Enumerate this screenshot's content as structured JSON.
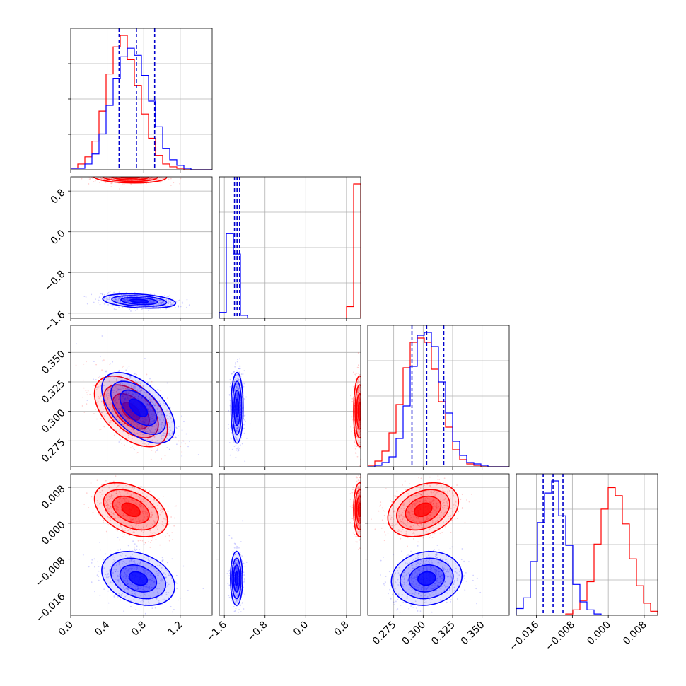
{
  "chart_data": {
    "type": "corner",
    "parameters": 4,
    "grid": true,
    "series": [
      {
        "color": "#ff0000"
      },
      {
        "color": "#0000ff"
      }
    ],
    "quantile_color": "#0000cc",
    "params": [
      {
        "index": 0,
        "lim": [
          0.0,
          1.55
        ],
        "ticks": [
          0.0,
          0.4,
          0.8,
          1.2
        ],
        "tick_labels": [
          "0.0",
          "0.4",
          "0.8",
          "1.2"
        ],
        "quantiles": [
          0.53,
          0.72,
          0.92
        ]
      },
      {
        "index": 1,
        "lim": [
          -1.7,
          1.08
        ],
        "ticks": [
          -1.6,
          -0.8,
          0.0,
          0.8
        ],
        "tick_labels": [
          "−1.6",
          "−0.8",
          "0.0",
          "0.8"
        ],
        "quantiles": [
          -1.4,
          -1.35,
          -1.3
        ]
      },
      {
        "index": 2,
        "lim": [
          0.253,
          0.373
        ],
        "ticks": [
          0.275,
          0.3,
          0.325,
          0.35
        ],
        "tick_labels": [
          "0.275",
          "0.300",
          "0.325",
          "0.350"
        ],
        "quantiles": [
          0.2905,
          0.303,
          0.3175
        ]
      },
      {
        "index": 3,
        "lim": [
          -0.0205,
          0.011
        ],
        "ticks": [
          -0.016,
          -0.008,
          0.0,
          0.008
        ],
        "tick_labels": [
          "−0.016",
          "−0.008",
          "0.000",
          "0.008"
        ],
        "quantiles": [
          -0.0145,
          -0.0123,
          -0.0101
        ]
      }
    ],
    "histograms": [
      {
        "param": 0,
        "bins": [
          0.0,
          0.0775,
          0.155,
          0.2325,
          0.31,
          0.3875,
          0.465,
          0.5425,
          0.62,
          0.6975,
          0.775,
          0.8525,
          0.93,
          1.0075,
          1.085,
          1.1625,
          1.24,
          1.3175,
          1.395,
          1.4725,
          1.55
        ],
        "counts": [
          {
            "series": 0,
            "values": [
              0.01,
              0.04,
              0.09,
              0.2,
              0.41,
              0.67,
              0.86,
              0.94,
              0.77,
              0.59,
              0.39,
              0.22,
              0.1,
              0.04,
              0.02,
              0.01,
              0.0,
              0.0,
              0.0,
              0.0
            ]
          },
          {
            "series": 1,
            "values": [
              0.01,
              0.01,
              0.04,
              0.11,
              0.25,
              0.45,
              0.64,
              0.79,
              0.85,
              0.8,
              0.66,
              0.48,
              0.3,
              0.15,
              0.07,
              0.03,
              0.01,
              0.0,
              0.0,
              0.0
            ]
          }
        ]
      },
      {
        "param": 1,
        "bins": [
          -1.7,
          -1.561,
          -1.422,
          -1.283,
          -1.144,
          -1.005,
          -0.866,
          -0.727,
          -0.588,
          -0.449,
          -0.31,
          -0.171,
          -0.032,
          0.107,
          0.246,
          0.385,
          0.524,
          0.663,
          0.802,
          0.941,
          1.08
        ],
        "counts": [
          {
            "series": 0,
            "values": [
              0,
              0,
              0,
              0,
              0,
              0,
              0,
              0,
              0,
              0,
              0,
              0,
              0,
              0,
              0,
              0,
              0,
              0,
              0.08,
              0.92
            ]
          },
          {
            "series": 1,
            "values": [
              0.04,
              0.58,
              0.44,
              0.02,
              0.0,
              0,
              0,
              0,
              0,
              0,
              0,
              0,
              0,
              0,
              0,
              0,
              0,
              0,
              0,
              0
            ]
          }
        ]
      },
      {
        "param": 2,
        "bins": [
          0.253,
          0.259,
          0.265,
          0.271,
          0.277,
          0.283,
          0.289,
          0.295,
          0.301,
          0.307,
          0.313,
          0.319,
          0.325,
          0.331,
          0.337,
          0.343,
          0.349,
          0.355,
          0.361,
          0.367,
          0.373
        ],
        "counts": [
          {
            "series": 0,
            "values": [
              0.01,
              0.04,
              0.11,
              0.24,
              0.44,
              0.7,
              0.88,
              0.91,
              0.88,
              0.69,
              0.46,
              0.28,
              0.12,
              0.05,
              0.02,
              0.01,
              0.0,
              0.0,
              0.0,
              0.0
            ]
          },
          {
            "series": 1,
            "values": [
              0.0,
              0.01,
              0.03,
              0.07,
              0.2,
              0.43,
              0.71,
              0.93,
              0.95,
              0.85,
              0.6,
              0.38,
              0.18,
              0.08,
              0.03,
              0.02,
              0.01,
              0.0,
              0.0,
              0.0
            ]
          }
        ]
      },
      {
        "param": 3,
        "bins": [
          -0.0205,
          -0.018925,
          -0.01735,
          -0.015775,
          -0.0142,
          -0.012625,
          -0.01105,
          -0.009475,
          -0.0079,
          -0.006325,
          -0.00475,
          -0.003175,
          -0.0016,
          -2.5e-05,
          0.00155,
          0.003125,
          0.0047,
          0.006275,
          0.00785,
          0.009425,
          0.011
        ],
        "counts": [
          {
            "series": 0,
            "values": [
              0,
              0,
              0,
              0,
              0,
              0,
              0,
              0.01,
              0.04,
              0.11,
              0.25,
              0.53,
              0.79,
              0.95,
              0.89,
              0.68,
              0.42,
              0.22,
              0.09,
              0.03
            ]
          },
          {
            "series": 1,
            "values": [
              0.05,
              0.13,
              0.4,
              0.69,
              0.91,
              1.0,
              0.74,
              0.52,
              0.23,
              0.1,
              0.04,
              0.01,
              0,
              0,
              0,
              0,
              0,
              0,
              0,
              0
            ]
          }
        ]
      }
    ],
    "pairs": [
      {
        "x": 0,
        "y": 1,
        "series": [
          {
            "series": 0,
            "mean": [
              0.65,
              1.08
            ],
            "sd": [
              0.2,
              0.06
            ],
            "corr": -0.1
          },
          {
            "series": 1,
            "mean": [
              0.75,
              -1.36
            ],
            "sd": [
              0.2,
              0.07
            ],
            "corr": -0.3
          }
        ]
      },
      {
        "x": 0,
        "y": 2,
        "series": [
          {
            "series": 0,
            "mean": [
              0.66,
              0.3
            ],
            "sd": [
              0.2,
              0.015
            ],
            "corr": -0.5
          },
          {
            "series": 1,
            "mean": [
              0.74,
              0.303
            ],
            "sd": [
              0.2,
              0.015
            ],
            "corr": -0.55
          }
        ]
      },
      {
        "x": 1,
        "y": 2,
        "series": [
          {
            "series": 0,
            "mean": [
              1.06,
              0.3
            ],
            "sd": [
              0.06,
              0.015
            ],
            "corr": 0.0
          },
          {
            "series": 1,
            "mean": [
              -1.35,
              0.303
            ],
            "sd": [
              0.06,
              0.015
            ],
            "corr": 0.0
          }
        ]
      },
      {
        "x": 0,
        "y": 3,
        "series": [
          {
            "series": 0,
            "mean": [
              0.66,
              0.003
            ],
            "sd": [
              0.2,
              0.003
            ],
            "corr": -0.4
          },
          {
            "series": 1,
            "mean": [
              0.74,
              -0.0123
            ],
            "sd": [
              0.2,
              0.003
            ],
            "corr": -0.3
          }
        ]
      },
      {
        "x": 1,
        "y": 3,
        "series": [
          {
            "series": 0,
            "mean": [
              1.06,
              0.003
            ],
            "sd": [
              0.06,
              0.003
            ],
            "corr": 0.0
          },
          {
            "series": 1,
            "mean": [
              -1.36,
              -0.0123
            ],
            "sd": [
              0.06,
              0.003
            ],
            "corr": 0.0
          }
        ]
      },
      {
        "x": 2,
        "y": 3,
        "series": [
          {
            "series": 0,
            "mean": [
              0.3,
              0.003
            ],
            "sd": [
              0.015,
              0.003
            ],
            "corr": 0.3
          },
          {
            "series": 1,
            "mean": [
              0.303,
              -0.0123
            ],
            "sd": [
              0.015,
              0.003
            ],
            "corr": 0.1
          }
        ]
      }
    ]
  }
}
